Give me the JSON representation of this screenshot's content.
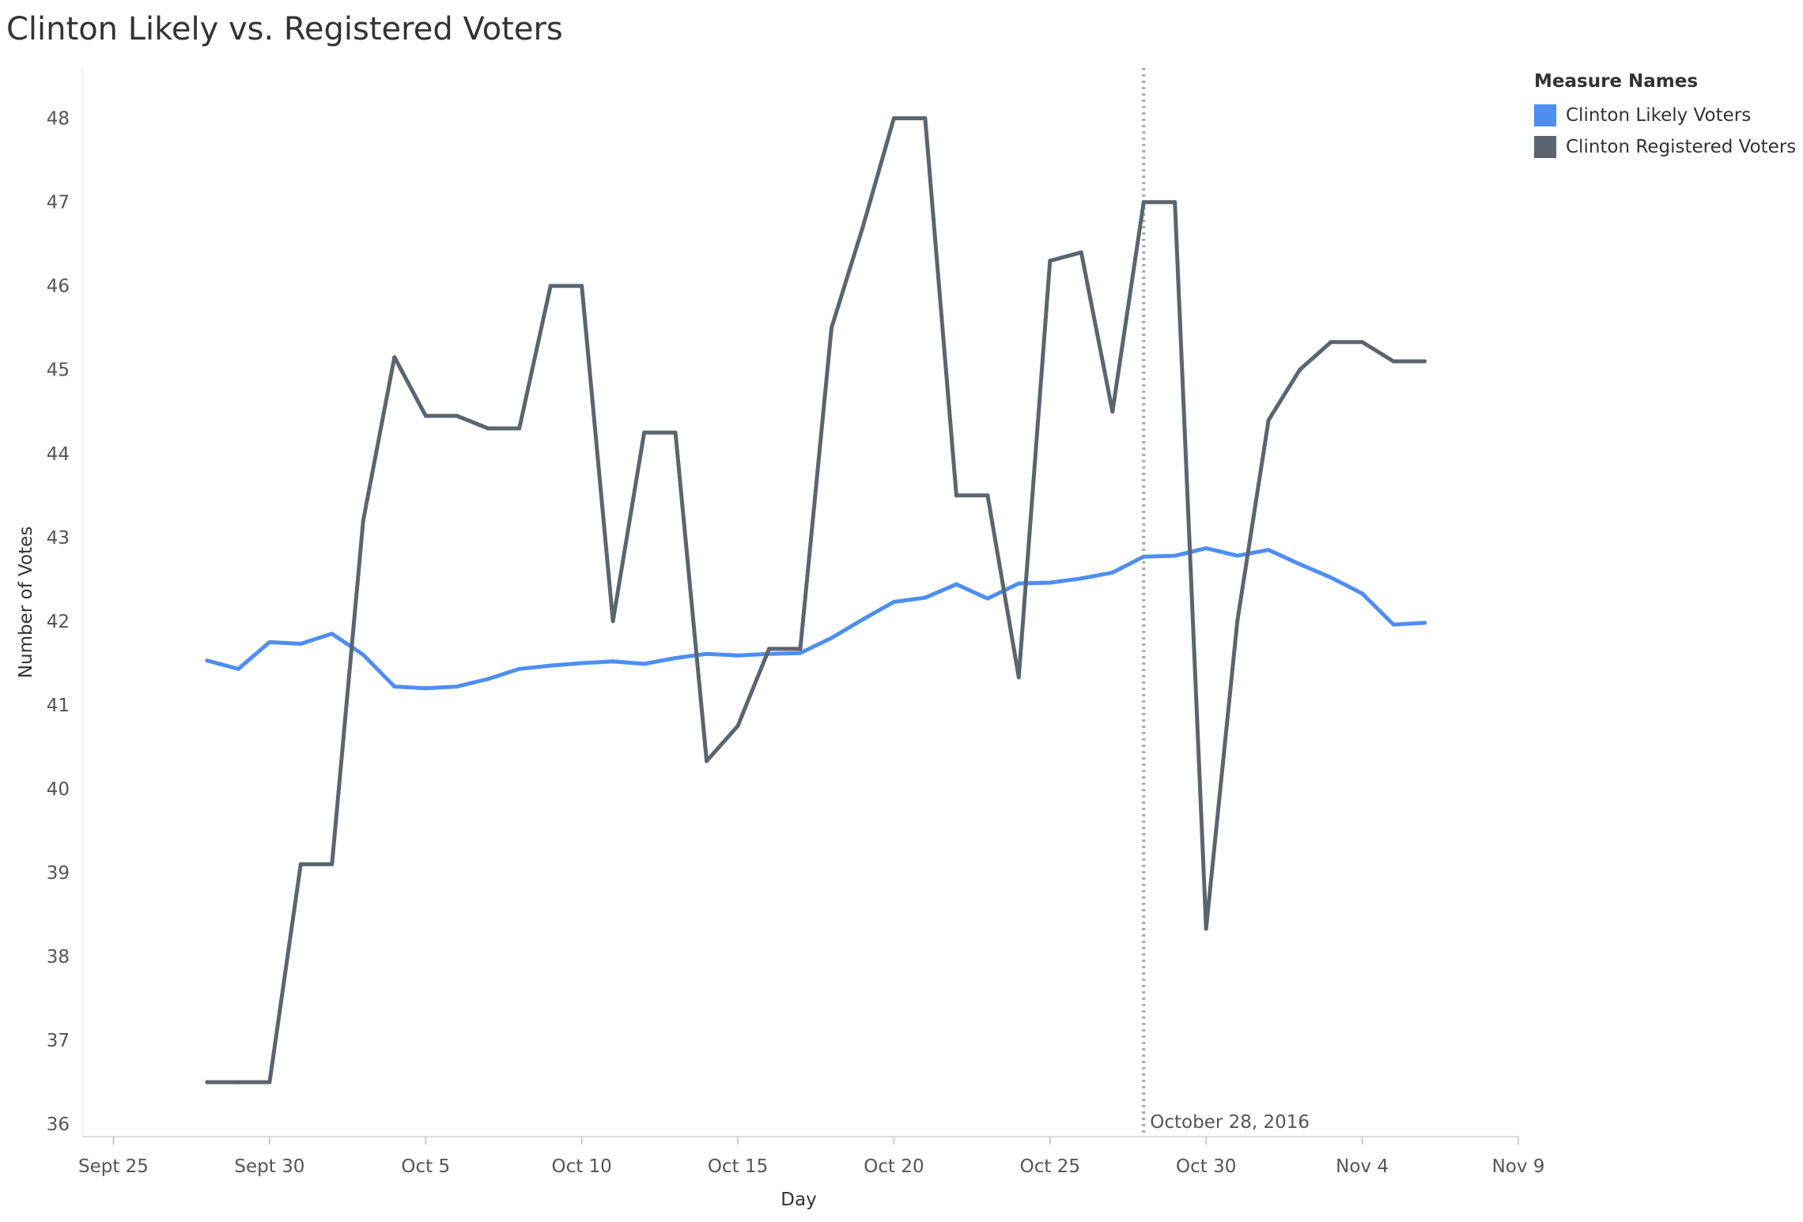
{
  "title": "Clinton Likely vs. Registered Voters",
  "legend": {
    "title": "Measure Names",
    "items": [
      {
        "label": "Clinton Likely Voters",
        "color": "#4e8ef2"
      },
      {
        "label": "Clinton Registered Voters",
        "color": "#5b6570"
      }
    ]
  },
  "chart_data": {
    "type": "line",
    "title": "Clinton Likely vs. Registered Voters",
    "xlabel": "Day",
    "ylabel": "Number of Votes",
    "x_ticks": [
      "Sept 25",
      "Sept 30",
      "Oct 5",
      "Oct 10",
      "Oct 15",
      "Oct 20",
      "Oct 25",
      "Oct 30",
      "Nov 4",
      "Nov 9"
    ],
    "y_ticks": [
      36,
      37,
      38,
      39,
      40,
      41,
      42,
      43,
      44,
      45,
      46,
      47,
      48
    ],
    "xlim": [
      "2016-09-24",
      "2016-11-09"
    ],
    "ylim": [
      35.85,
      48.6
    ],
    "grid": false,
    "legend_position": "top-right",
    "reference_line": {
      "date": "2016-10-28",
      "label": "October 28, 2016",
      "style": "dotted"
    },
    "x": [
      "2016-09-28",
      "2016-09-29",
      "2016-09-30",
      "2016-10-01",
      "2016-10-02",
      "2016-10-03",
      "2016-10-04",
      "2016-10-05",
      "2016-10-06",
      "2016-10-07",
      "2016-10-08",
      "2016-10-09",
      "2016-10-10",
      "2016-10-11",
      "2016-10-12",
      "2016-10-13",
      "2016-10-14",
      "2016-10-15",
      "2016-10-16",
      "2016-10-17",
      "2016-10-18",
      "2016-10-19",
      "2016-10-20",
      "2016-10-21",
      "2016-10-22",
      "2016-10-23",
      "2016-10-24",
      "2016-10-25",
      "2016-10-26",
      "2016-10-27",
      "2016-10-28",
      "2016-10-29",
      "2016-10-30",
      "2016-10-31",
      "2016-11-01",
      "2016-11-02",
      "2016-11-03",
      "2016-11-04",
      "2016-11-05",
      "2016-11-06"
    ],
    "series": [
      {
        "name": "Clinton Likely Voters",
        "color": "#4e8ef2",
        "values": [
          41.53,
          41.43,
          41.75,
          41.73,
          41.85,
          41.6,
          41.22,
          41.2,
          41.22,
          41.31,
          41.43,
          41.47,
          41.5,
          41.52,
          41.49,
          41.56,
          41.61,
          41.59,
          41.61,
          41.62,
          41.8,
          42.02,
          42.23,
          42.28,
          42.44,
          42.27,
          42.45,
          42.46,
          42.51,
          42.58,
          42.77,
          42.78,
          42.87,
          42.78,
          42.85,
          42.68,
          42.52,
          42.33,
          41.96,
          41.98
        ]
      },
      {
        "name": "Clinton Registered Voters",
        "color": "#5b6570",
        "values": [
          36.5,
          36.5,
          36.5,
          39.1,
          39.1,
          43.2,
          45.15,
          44.45,
          44.45,
          44.3,
          44.3,
          46.0,
          46.0,
          42.0,
          44.25,
          44.25,
          40.33,
          40.75,
          41.67,
          41.67,
          45.5,
          46.7,
          48.0,
          48.0,
          43.5,
          43.5,
          41.33,
          46.3,
          46.4,
          44.5,
          47.0,
          47.0,
          38.33,
          42.0,
          44.4,
          45.0,
          45.33,
          45.33,
          45.1,
          45.1
        ]
      }
    ]
  }
}
